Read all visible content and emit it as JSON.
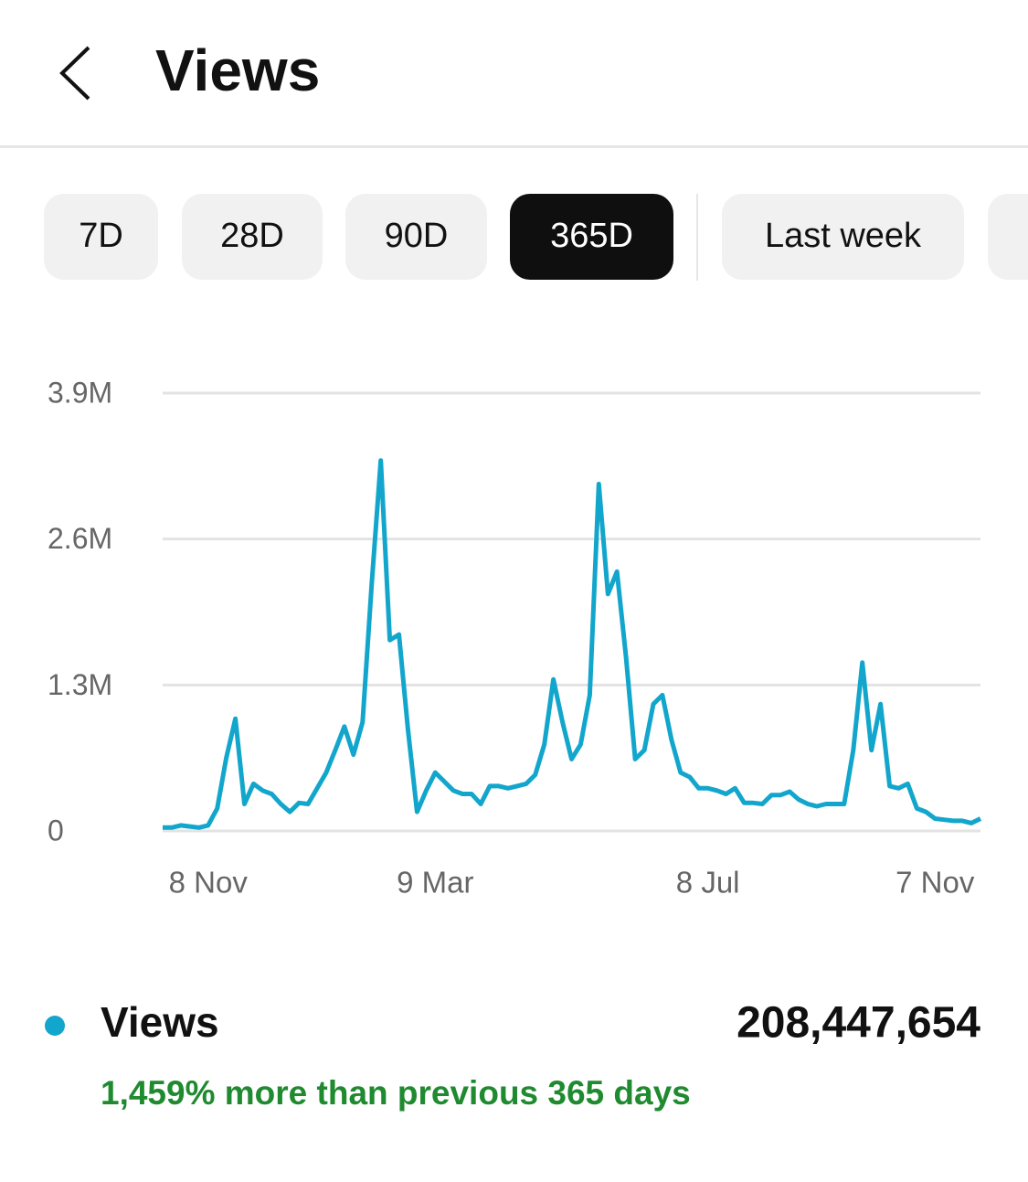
{
  "header": {
    "title": "Views"
  },
  "tabs": {
    "items": [
      "7D",
      "28D",
      "90D",
      "365D",
      "Last week"
    ],
    "selected": 3
  },
  "chart_data": {
    "type": "line",
    "categories": [
      null,
      null,
      null,
      null,
      null,
      "8 Nov",
      null,
      null,
      null,
      null,
      null,
      null,
      null,
      null,
      null,
      null,
      null,
      null,
      null,
      null,
      null,
      null,
      null,
      null,
      null,
      null,
      null,
      null,
      null,
      null,
      "9 Mar",
      null,
      null,
      null,
      null,
      null,
      null,
      null,
      null,
      null,
      null,
      null,
      null,
      null,
      null,
      null,
      null,
      null,
      null,
      null,
      null,
      null,
      null,
      null,
      null,
      null,
      null,
      null,
      null,
      null,
      "8 Jul",
      null,
      null,
      null,
      null,
      null,
      null,
      null,
      null,
      null,
      null,
      null,
      null,
      null,
      null,
      null,
      null,
      null,
      null,
      null,
      null,
      null,
      null,
      null,
      null,
      "7 Nov",
      null,
      null,
      null,
      null,
      null
    ],
    "series": [
      {
        "name": "Views",
        "color": "#12a6cc",
        "values": [
          30000,
          30000,
          50000,
          40000,
          30000,
          50000,
          200000,
          650000,
          1000000,
          240000,
          420000,
          360000,
          330000,
          240000,
          170000,
          250000,
          240000,
          380000,
          520000,
          720000,
          930000,
          680000,
          970000,
          2190000,
          3300000,
          1700000,
          1750000,
          900000,
          170000,
          360000,
          520000,
          440000,
          360000,
          330000,
          330000,
          240000,
          400000,
          400000,
          380000,
          400000,
          420000,
          500000,
          770000,
          1350000,
          970000,
          640000,
          770000,
          1210000,
          3090000,
          2110000,
          2310000,
          1540000,
          640000,
          720000,
          1130000,
          1210000,
          810000,
          520000,
          480000,
          380000,
          380000,
          360000,
          330000,
          380000,
          250000,
          250000,
          240000,
          320000,
          320000,
          350000,
          280000,
          240000,
          220000,
          240000,
          240000,
          240000,
          720000,
          1500000,
          720000,
          1130000,
          400000,
          380000,
          420000,
          200000,
          170000,
          110000,
          100000,
          90000,
          90000,
          70000,
          110000
        ]
      }
    ],
    "ylim": [
      0,
      3900000
    ],
    "yticks": [
      0,
      {
        "value": 1300000,
        "label": "1.3M"
      },
      {
        "value": 2600000,
        "label": "2.6M"
      },
      {
        "value": 3900000,
        "label": "3.9M"
      }
    ],
    "grid": true
  },
  "summary": {
    "total": "208,447,654",
    "change": "1,459% more than previous 365 days"
  }
}
